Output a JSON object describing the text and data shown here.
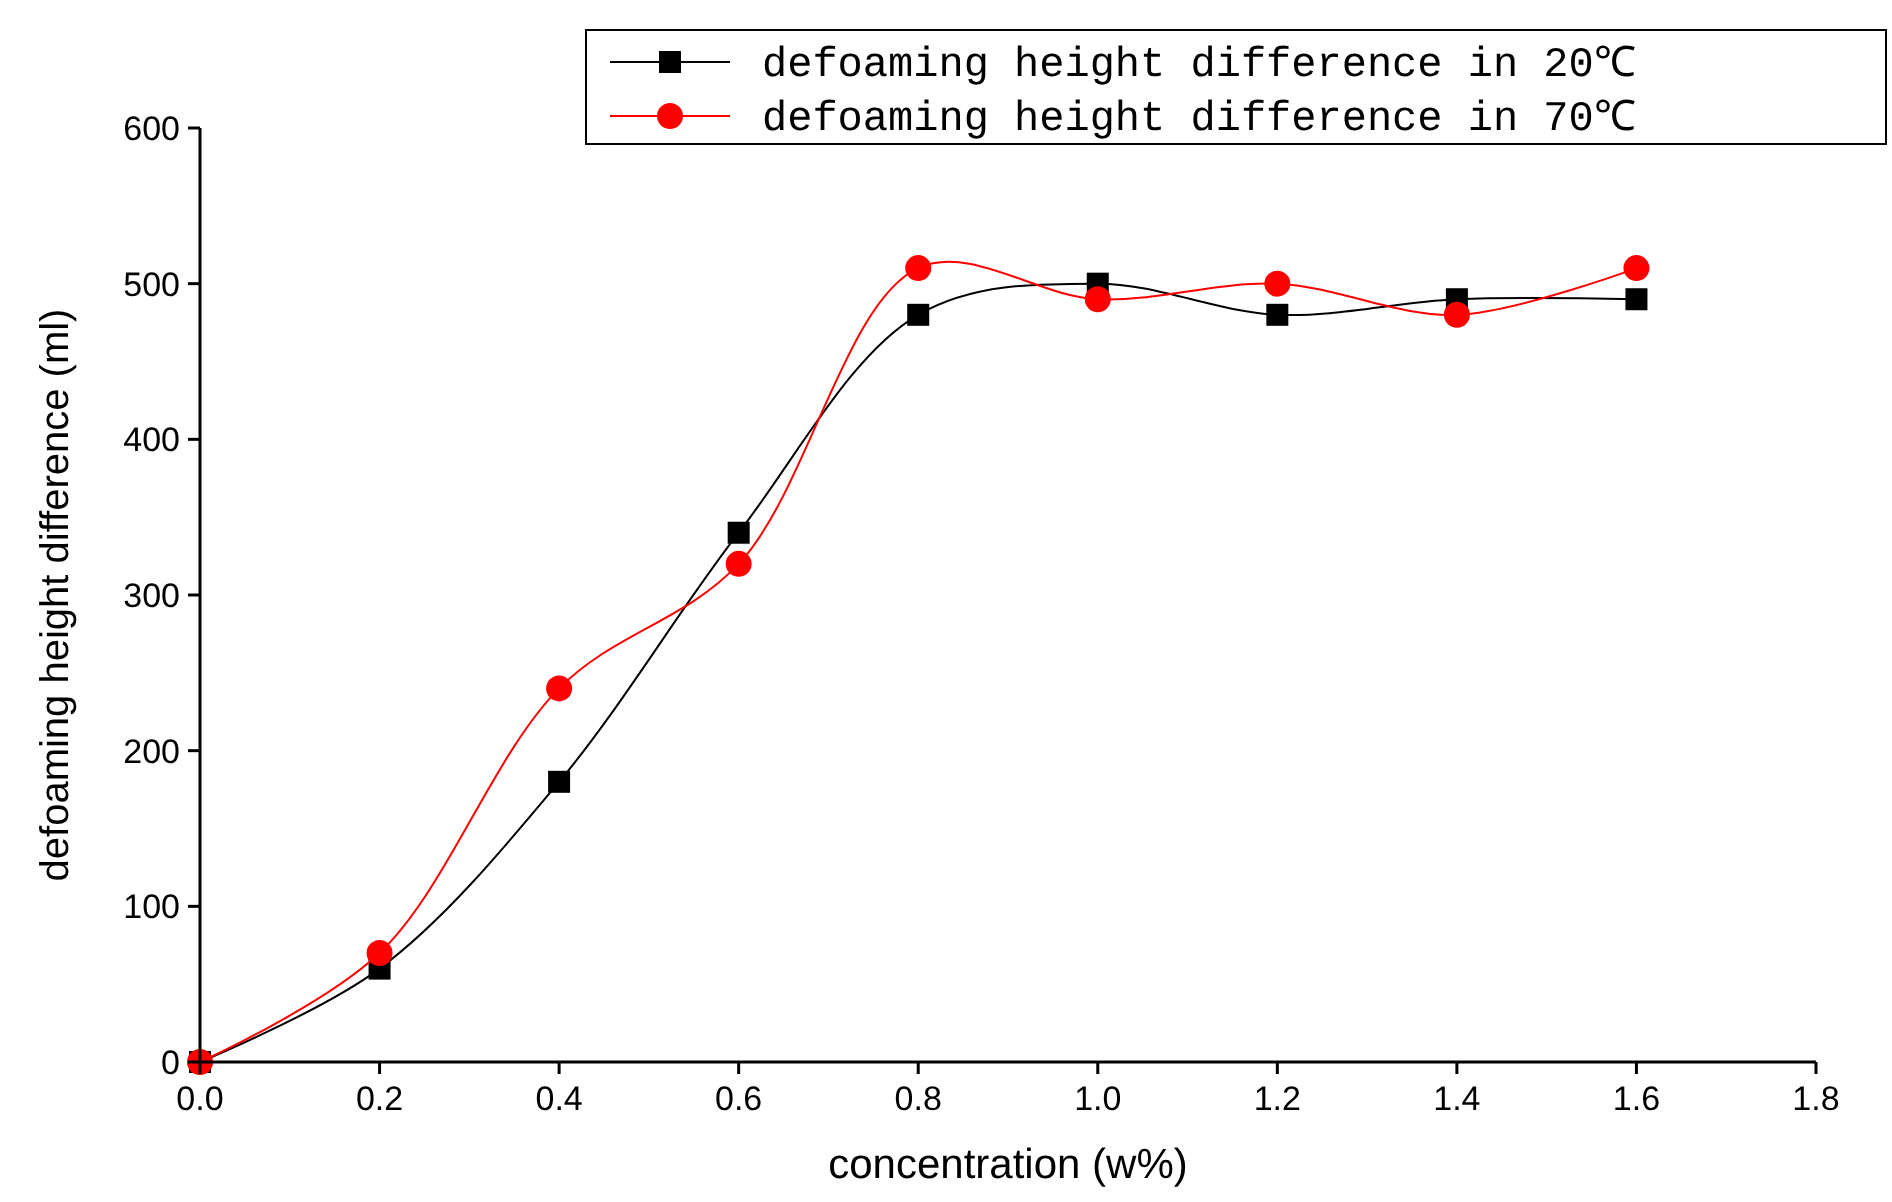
{
  "chart_data": {
    "type": "line",
    "xlabel": "concentration (w%)",
    "ylabel": "defoaming height difference (ml)",
    "x": [
      0,
      0.2,
      0.4,
      0.6,
      0.8,
      1.0,
      1.2,
      1.4,
      1.6
    ],
    "series": [
      {
        "name": "defoaming height difference in 20℃",
        "color": "#000000",
        "marker": "square",
        "values": [
          0,
          60,
          180,
          340,
          480,
          500,
          480,
          490,
          490
        ]
      },
      {
        "name": "defoaming height difference in 70℃",
        "color": "#ff0000",
        "marker": "circle",
        "values": [
          0,
          70,
          240,
          320,
          510,
          490,
          500,
          480,
          510
        ]
      }
    ],
    "xlim": [
      0,
      1.8
    ],
    "xticks": [
      {
        "value": 0,
        "label": "0.0"
      },
      {
        "value": 0.2,
        "label": "0.2"
      },
      {
        "value": 0.4,
        "label": "0.4"
      },
      {
        "value": 0.6,
        "label": "0.6"
      },
      {
        "value": 0.8,
        "label": "0.8"
      },
      {
        "value": 1.0,
        "label": "1.0"
      },
      {
        "value": 1.2,
        "label": "1.2"
      },
      {
        "value": 1.4,
        "label": "1.4"
      },
      {
        "value": 1.6,
        "label": "1.6"
      },
      {
        "value": 1.8,
        "label": "1.8"
      }
    ],
    "ylim": [
      0,
      600
    ],
    "yticks": [
      0,
      100,
      200,
      300,
      400,
      500,
      600
    ],
    "grid": false,
    "legend": "top right",
    "line_style": "solid"
  }
}
